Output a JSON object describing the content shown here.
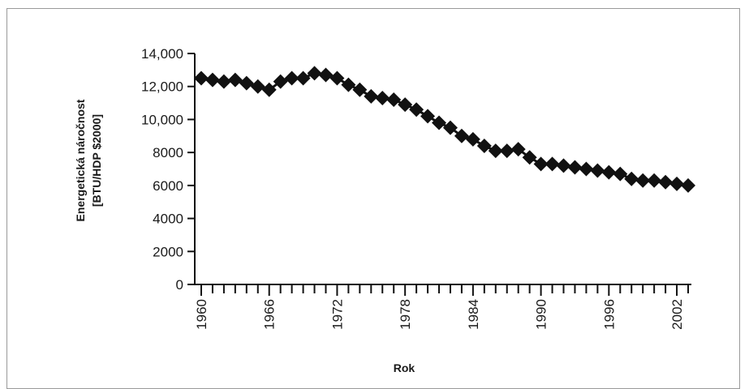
{
  "chart_data": {
    "type": "line",
    "xlabel": "Rok",
    "ylabel_lines": [
      "Energetická náročnost",
      "[BTU/HDP $2000]"
    ],
    "ylim": [
      0,
      14000
    ],
    "xlim": [
      1960,
      2003
    ],
    "y_ticks": [
      0,
      2000,
      4000,
      6000,
      8000,
      10000,
      12000,
      14000
    ],
    "y_tick_labels": [
      "0",
      "2000",
      "4000",
      "6000",
      "8000",
      "10,000",
      "12,000",
      "14,000"
    ],
    "x_tick_labels": [
      1960,
      1966,
      1972,
      1978,
      1984,
      1990,
      1996,
      2002
    ],
    "marker": "diamond",
    "series": [
      {
        "color": "#111111",
        "x": [
          1960,
          1961,
          1962,
          1963,
          1964,
          1965,
          1966,
          1967,
          1968,
          1969,
          1970,
          1971,
          1972,
          1973,
          1974,
          1975,
          1976,
          1977,
          1978,
          1979,
          1980,
          1981,
          1982,
          1983,
          1984,
          1985,
          1986,
          1987,
          1988,
          1989,
          1990,
          1991,
          1992,
          1993,
          1994,
          1995,
          1996,
          1997,
          1998,
          1999,
          2000,
          2001,
          2002,
          2003
        ],
        "y": [
          12500,
          12400,
          12300,
          12400,
          12200,
          12000,
          11800,
          12300,
          12500,
          12500,
          12800,
          12700,
          12500,
          12100,
          11800,
          11400,
          11300,
          11200,
          10900,
          10600,
          10200,
          9800,
          9500,
          9000,
          8800,
          8400,
          8100,
          8100,
          8200,
          7700,
          7300,
          7300,
          7200,
          7100,
          7000,
          6900,
          6800,
          6700,
          6400,
          6300,
          6300,
          6200,
          6100,
          6000
        ]
      }
    ]
  }
}
